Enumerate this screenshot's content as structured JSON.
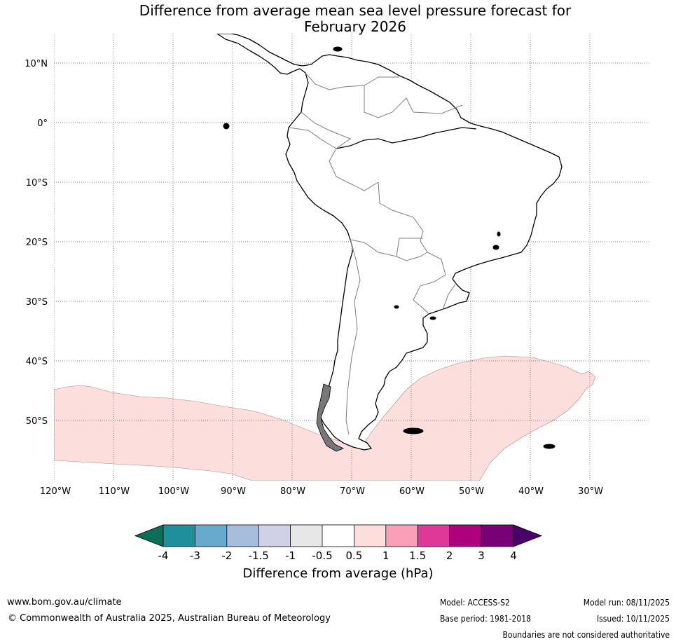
{
  "title": {
    "line1": "Difference from average mean sea level pressure forecast for",
    "line2": "February 2026"
  },
  "map": {
    "lat_labels": [
      "10°N",
      "0°",
      "10°S",
      "20°S",
      "30°S",
      "40°S",
      "50°S"
    ],
    "lon_labels": [
      "120°W",
      "110°W",
      "100°W",
      "90°W",
      "80°W",
      "70°W",
      "60°W",
      "50°W",
      "40°W",
      "30°W"
    ],
    "anomaly_region": "0.5 to 1 hPa",
    "colors": {
      "ocean": "#ffffff",
      "anomaly_fill": "#fcdedd",
      "coastline": "#000000",
      "borders": "#7f7f7f"
    }
  },
  "colorbar": {
    "label": "Difference from average (hPa)",
    "ticks": [
      "-4",
      "-3",
      "-2",
      "-1.5",
      "-1",
      "-0.5",
      "0.5",
      "1",
      "1.5",
      "2",
      "3",
      "4"
    ],
    "colors": [
      "#0b6e58",
      "#1f8f9b",
      "#67a9cf",
      "#a6bddb",
      "#d0d1e6",
      "#e7e7e7",
      "#ffffff",
      "#fcdedd",
      "#f99fb8",
      "#e0379a",
      "#ad017e",
      "#790178",
      "#49006a"
    ]
  },
  "footer": {
    "website": "www.bom.gov.au/climate",
    "copyright": "© Commonwealth of Australia 2025, Australian Bureau of Meteorology",
    "model": "Model: ACCESS-S2",
    "base_period": "Base period: 1981-2018",
    "model_run": "Model run: 08/11/2025",
    "issued": "Issued: 10/11/2025",
    "boundaries_note": "Boundaries are not considered authoritative"
  }
}
